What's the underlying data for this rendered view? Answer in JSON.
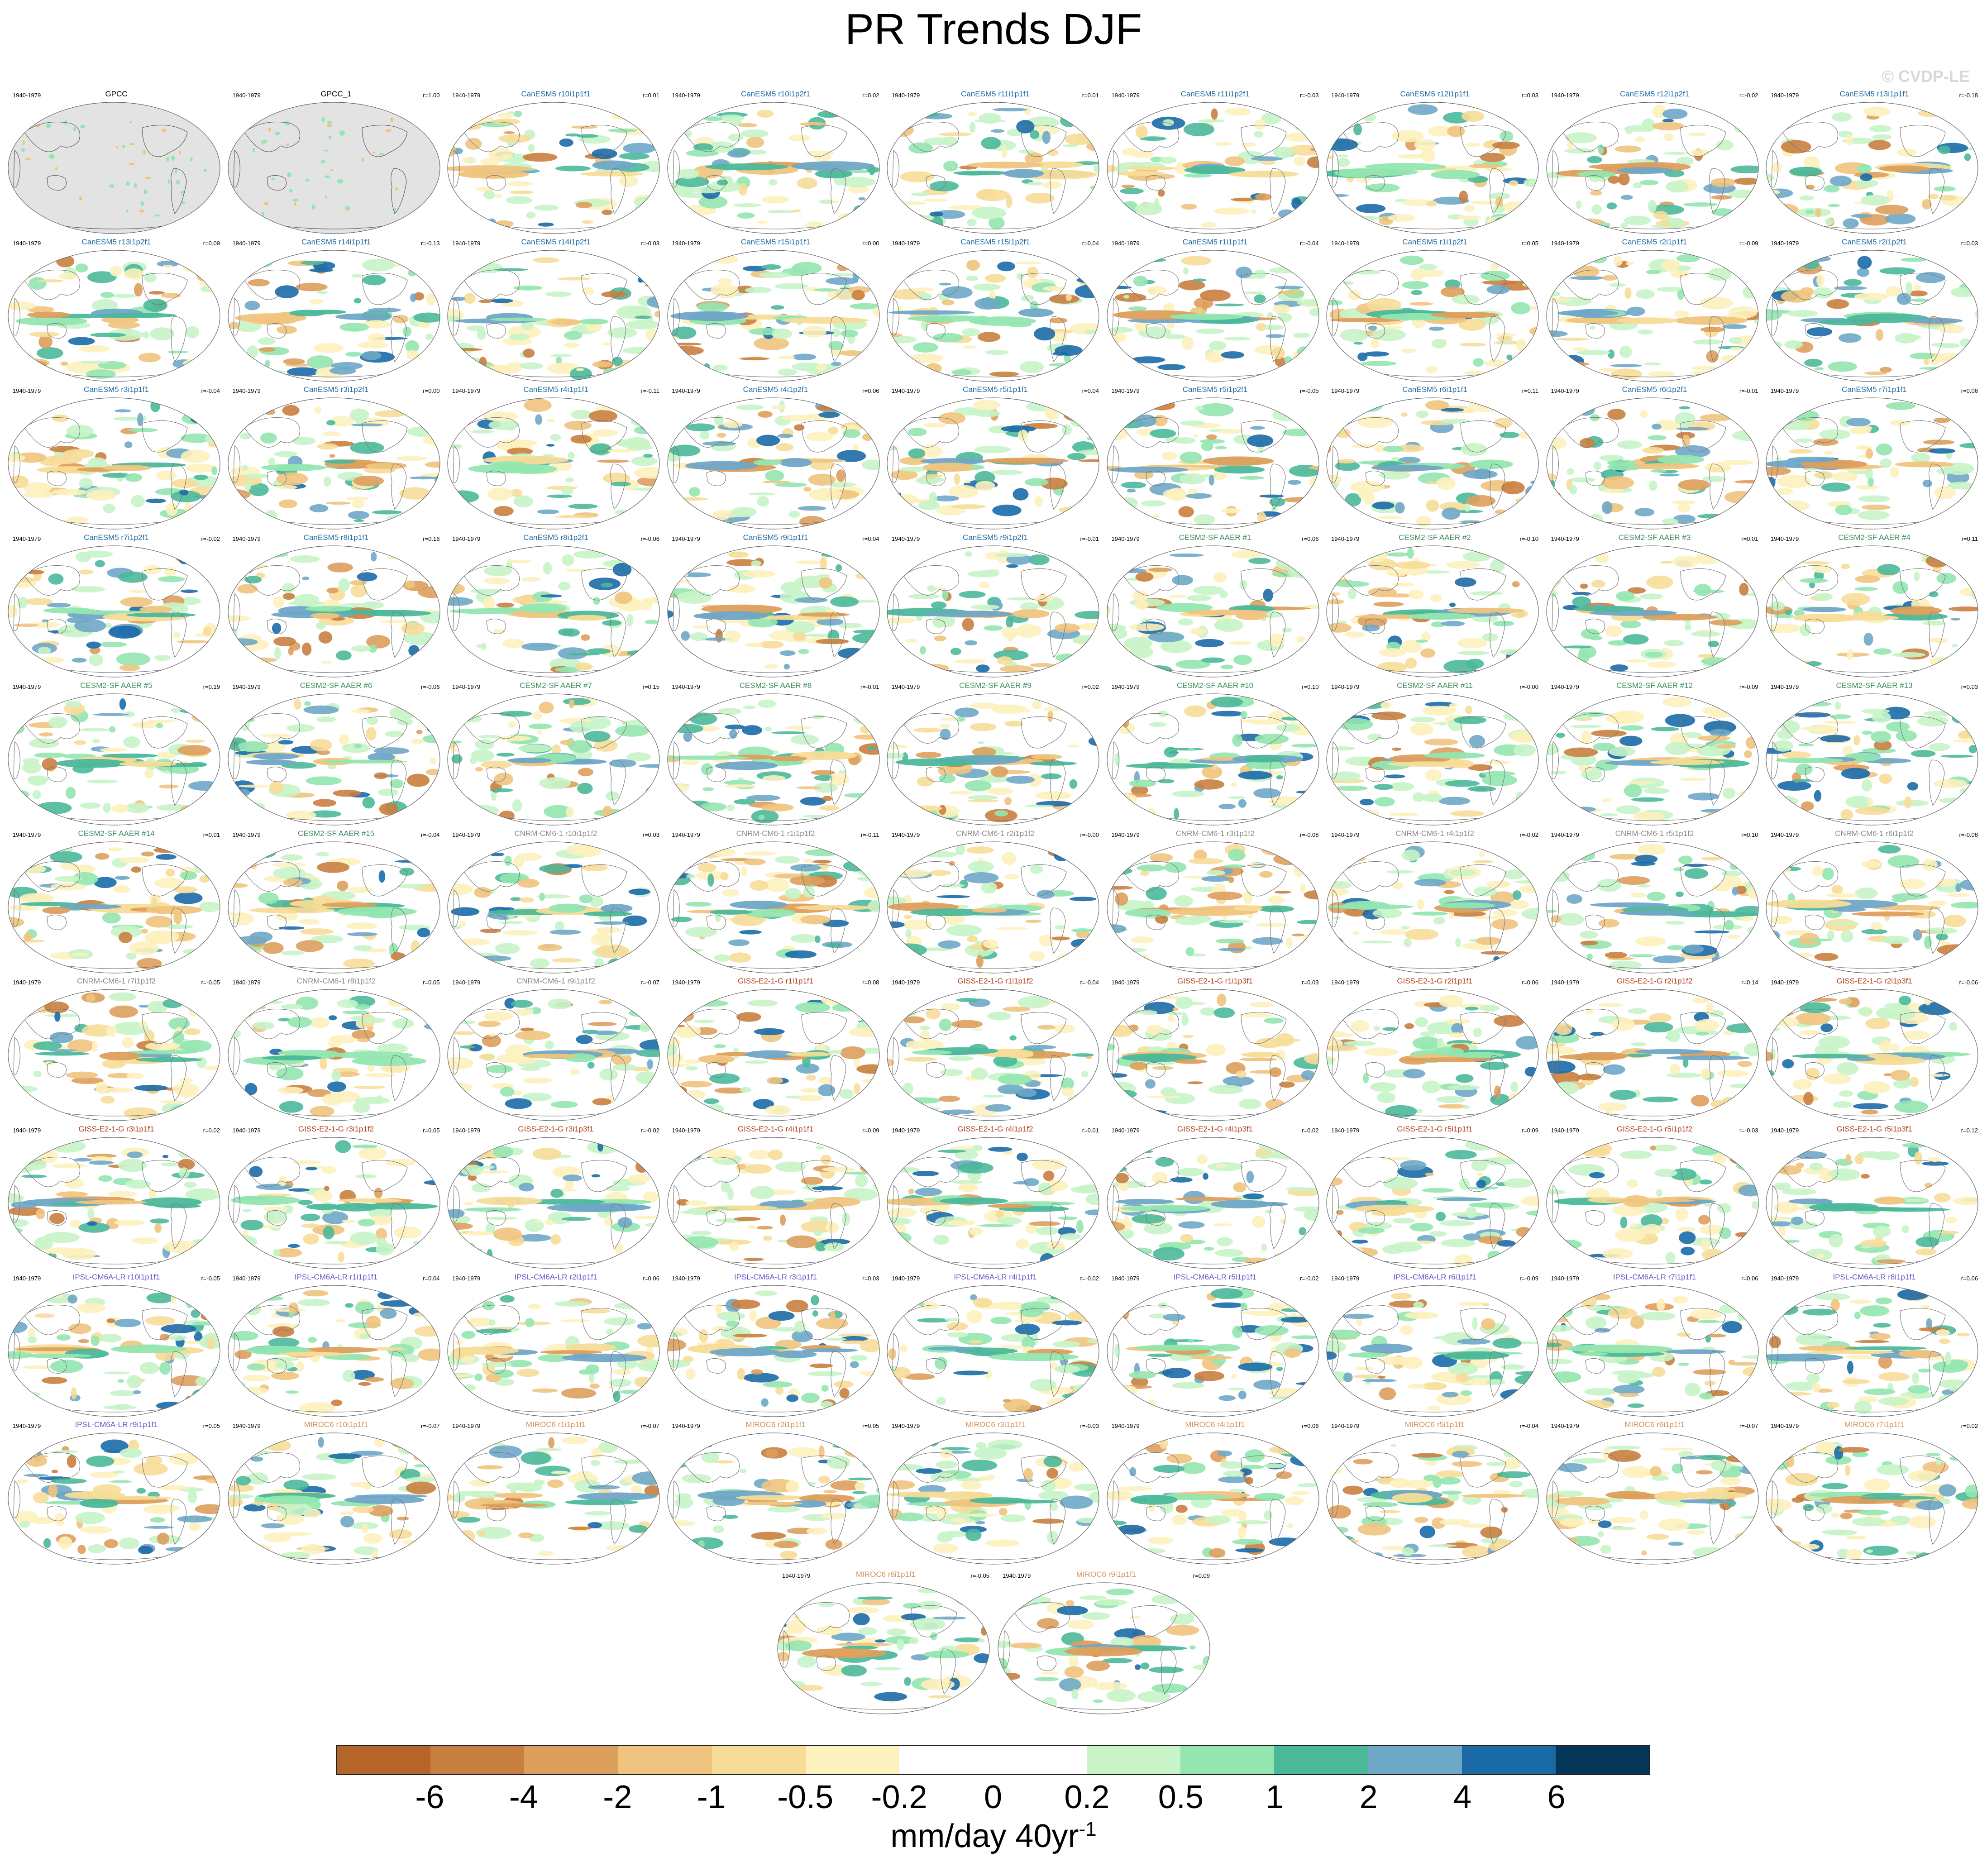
{
  "title": "PR Trends DJF",
  "watermark": "© CVDP-LE",
  "period": "1940-1979",
  "colors": {
    "canesm5": "#1f6aa0",
    "cesm2": "#3e8b5c",
    "cnrm": "#8a8a8a",
    "giss": "#b0411a",
    "ipsl": "#6b56c9",
    "miroc6": "#d59155",
    "obs": "#000000"
  },
  "panels": [
    {
      "name": "GPCC",
      "r": "",
      "group": "obs",
      "obs": true
    },
    {
      "name": "GPCC_1",
      "r": "r=1.00",
      "group": "obs",
      "obs": true
    },
    {
      "name": "CanESM5 r10i1p1f1",
      "r": "r=0.01",
      "group": "canesm5"
    },
    {
      "name": "CanESM5 r10i1p2f1",
      "r": "r=0.02",
      "group": "canesm5"
    },
    {
      "name": "CanESM5 r11i1p1f1",
      "r": "r=0.01",
      "group": "canesm5"
    },
    {
      "name": "CanESM5 r11i1p2f1",
      "r": "r=-0.03",
      "group": "canesm5"
    },
    {
      "name": "CanESM5 r12i1p1f1",
      "r": "r=0.03",
      "group": "canesm5"
    },
    {
      "name": "CanESM5 r12i1p2f1",
      "r": "r=-0.02",
      "group": "canesm5"
    },
    {
      "name": "CanESM5 r13i1p1f1",
      "r": "r=-0.18",
      "group": "canesm5"
    },
    {
      "name": "CanESM5 r13i1p2f1",
      "r": "r=0.09",
      "group": "canesm5"
    },
    {
      "name": "CanESM5 r14i1p1f1",
      "r": "r=-0.13",
      "group": "canesm5"
    },
    {
      "name": "CanESM5 r14i1p2f1",
      "r": "r=-0.03",
      "group": "canesm5"
    },
    {
      "name": "CanESM5 r15i1p1f1",
      "r": "r=0.00",
      "group": "canesm5"
    },
    {
      "name": "CanESM5 r15i1p2f1",
      "r": "r=0.04",
      "group": "canesm5"
    },
    {
      "name": "CanESM5 r1i1p1f1",
      "r": "r=-0.04",
      "group": "canesm5"
    },
    {
      "name": "CanESM5 r1i1p2f1",
      "r": "r=0.05",
      "group": "canesm5"
    },
    {
      "name": "CanESM5 r2i1p1f1",
      "r": "r=-0.09",
      "group": "canesm5"
    },
    {
      "name": "CanESM5 r2i1p2f1",
      "r": "r=0.03",
      "group": "canesm5"
    },
    {
      "name": "CanESM5 r3i1p1f1",
      "r": "r=-0.04",
      "group": "canesm5"
    },
    {
      "name": "CanESM5 r3i1p2f1",
      "r": "r=0.00",
      "group": "canesm5"
    },
    {
      "name": "CanESM5 r4i1p1f1",
      "r": "r=-0.11",
      "group": "canesm5"
    },
    {
      "name": "CanESM5 r4i1p2f1",
      "r": "r=0.06",
      "group": "canesm5"
    },
    {
      "name": "CanESM5 r5i1p1f1",
      "r": "r=0.04",
      "group": "canesm5"
    },
    {
      "name": "CanESM5 r5i1p2f1",
      "r": "r=-0.05",
      "group": "canesm5"
    },
    {
      "name": "CanESM5 r6i1p1f1",
      "r": "r=0.11",
      "group": "canesm5"
    },
    {
      "name": "CanESM5 r6i1p2f1",
      "r": "r=-0.01",
      "group": "canesm5"
    },
    {
      "name": "CanESM5 r7i1p1f1",
      "r": "r=0.06",
      "group": "canesm5"
    },
    {
      "name": "CanESM5 r7i1p2f1",
      "r": "r=-0.02",
      "group": "canesm5"
    },
    {
      "name": "CanESM5 r8i1p1f1",
      "r": "r=0.16",
      "group": "canesm5"
    },
    {
      "name": "CanESM5 r8i1p2f1",
      "r": "r=-0.06",
      "group": "canesm5"
    },
    {
      "name": "CanESM5 r9i1p1f1",
      "r": "r=0.04",
      "group": "canesm5"
    },
    {
      "name": "CanESM5 r9i1p2f1",
      "r": "r=-0.01",
      "group": "canesm5"
    },
    {
      "name": "CESM2-SF AAER #1",
      "r": "r=0.06",
      "group": "cesm2"
    },
    {
      "name": "CESM2-SF AAER #2",
      "r": "r=-0.10",
      "group": "cesm2"
    },
    {
      "name": "CESM2-SF AAER #3",
      "r": "r=0.01",
      "group": "cesm2"
    },
    {
      "name": "CESM2-SF AAER #4",
      "r": "r=0.11",
      "group": "cesm2"
    },
    {
      "name": "CESM2-SF AAER #5",
      "r": "r=0.19",
      "group": "cesm2"
    },
    {
      "name": "CESM2-SF AAER #6",
      "r": "r=-0.06",
      "group": "cesm2"
    },
    {
      "name": "CESM2-SF AAER #7",
      "r": "r=0.15",
      "group": "cesm2"
    },
    {
      "name": "CESM2-SF AAER #8",
      "r": "r=-0.01",
      "group": "cesm2"
    },
    {
      "name": "CESM2-SF AAER #9",
      "r": "r=0.02",
      "group": "cesm2"
    },
    {
      "name": "CESM2-SF AAER #10",
      "r": "r=0.10",
      "group": "cesm2"
    },
    {
      "name": "CESM2-SF AAER #11",
      "r": "r=-0.00",
      "group": "cesm2"
    },
    {
      "name": "CESM2-SF AAER #12",
      "r": "r=-0.09",
      "group": "cesm2"
    },
    {
      "name": "CESM2-SF AAER #13",
      "r": "r=0.03",
      "group": "cesm2"
    },
    {
      "name": "CESM2-SF AAER #14",
      "r": "r=0.01",
      "group": "cesm2"
    },
    {
      "name": "CESM2-SF AAER #15",
      "r": "r=-0.04",
      "group": "cesm2"
    },
    {
      "name": "CNRM-CM6-1 r10i1p1f2",
      "r": "r=0.03",
      "group": "cnrm"
    },
    {
      "name": "CNRM-CM6-1 r1i1p1f2",
      "r": "r=-0.11",
      "group": "cnrm"
    },
    {
      "name": "CNRM-CM6-1 r2i1p1f2",
      "r": "r=-0.00",
      "group": "cnrm"
    },
    {
      "name": "CNRM-CM6-1 r3i1p1f2",
      "r": "r=-0.08",
      "group": "cnrm"
    },
    {
      "name": "CNRM-CM6-1 r4i1p1f2",
      "r": "r=-0.02",
      "group": "cnrm"
    },
    {
      "name": "CNRM-CM6-1 r5i1p1f2",
      "r": "r=0.10",
      "group": "cnrm"
    },
    {
      "name": "CNRM-CM6-1 r6i1p1f2",
      "r": "r=-0.08",
      "group": "cnrm"
    },
    {
      "name": "CNRM-CM6-1 r7i1p1f2",
      "r": "r=-0.05",
      "group": "cnrm"
    },
    {
      "name": "CNRM-CM6-1 r8i1p1f2",
      "r": "r=0.05",
      "group": "cnrm"
    },
    {
      "name": "CNRM-CM6-1 r9i1p1f2",
      "r": "r=-0.07",
      "group": "cnrm"
    },
    {
      "name": "GISS-E2-1-G r1i1p1f1",
      "r": "r=0.08",
      "group": "giss"
    },
    {
      "name": "GISS-E2-1-G r1i1p1f2",
      "r": "r=-0.04",
      "group": "giss"
    },
    {
      "name": "GISS-E2-1-G r1i1p3f1",
      "r": "r=0.03",
      "group": "giss"
    },
    {
      "name": "GISS-E2-1-G r2i1p1f1",
      "r": "r=0.06",
      "group": "giss"
    },
    {
      "name": "GISS-E2-1-G r2i1p1f2",
      "r": "r=0.14",
      "group": "giss"
    },
    {
      "name": "GISS-E2-1-G r2i1p3f1",
      "r": "r=-0.06",
      "group": "giss"
    },
    {
      "name": "GISS-E2-1-G r3i1p1f1",
      "r": "r=0.02",
      "group": "giss"
    },
    {
      "name": "GISS-E2-1-G r3i1p1f2",
      "r": "r=0.05",
      "group": "giss"
    },
    {
      "name": "GISS-E2-1-G r3i1p3f1",
      "r": "r=-0.02",
      "group": "giss"
    },
    {
      "name": "GISS-E2-1-G r4i1p1f1",
      "r": "r=0.09",
      "group": "giss"
    },
    {
      "name": "GISS-E2-1-G r4i1p1f2",
      "r": "r=0.01",
      "group": "giss"
    },
    {
      "name": "GISS-E2-1-G r4i1p3f1",
      "r": "r=0.02",
      "group": "giss"
    },
    {
      "name": "GISS-E2-1-G r5i1p1f1",
      "r": "r=0.09",
      "group": "giss"
    },
    {
      "name": "GISS-E2-1-G r5i1p1f2",
      "r": "r=-0.03",
      "group": "giss"
    },
    {
      "name": "GISS-E2-1-G r5i1p3f1",
      "r": "r=0.12",
      "group": "giss"
    },
    {
      "name": "IPSL-CM6A-LR r10i1p1f1",
      "r": "r=-0.05",
      "group": "ipsl"
    },
    {
      "name": "IPSL-CM6A-LR r1i1p1f1",
      "r": "r=0.04",
      "group": "ipsl"
    },
    {
      "name": "IPSL-CM6A-LR r2i1p1f1",
      "r": "r=0.06",
      "group": "ipsl"
    },
    {
      "name": "IPSL-CM6A-LR r3i1p1f1",
      "r": "r=0.03",
      "group": "ipsl"
    },
    {
      "name": "IPSL-CM6A-LR r4i1p1f1",
      "r": "r=-0.02",
      "group": "ipsl"
    },
    {
      "name": "IPSL-CM6A-LR r5i1p1f1",
      "r": "r=-0.02",
      "group": "ipsl"
    },
    {
      "name": "IPSL-CM6A-LR r6i1p1f1",
      "r": "r=-0.09",
      "group": "ipsl"
    },
    {
      "name": "IPSL-CM6A-LR r7i1p1f1",
      "r": "r=0.06",
      "group": "ipsl"
    },
    {
      "name": "IPSL-CM6A-LR r8i1p1f1",
      "r": "r=0.06",
      "group": "ipsl"
    },
    {
      "name": "IPSL-CM6A-LR r9i1p1f1",
      "r": "r=0.05",
      "group": "ipsl"
    },
    {
      "name": "MIROC6 r10i1p1f1",
      "r": "r=-0.07",
      "group": "miroc6"
    },
    {
      "name": "MIROC6 r1i1p1f1",
      "r": "r=-0.07",
      "group": "miroc6"
    },
    {
      "name": "MIROC6 r2i1p1f1",
      "r": "r=0.05",
      "group": "miroc6"
    },
    {
      "name": "MIROC6 r3i1p1f1",
      "r": "r=-0.03",
      "group": "miroc6"
    },
    {
      "name": "MIROC6 r4i1p1f1",
      "r": "r=0.06",
      "group": "miroc6"
    },
    {
      "name": "MIROC6 r5i1p1f1",
      "r": "r=-0.04",
      "group": "miroc6"
    },
    {
      "name": "MIROC6 r6i1p1f1",
      "r": "r=-0.07",
      "group": "miroc6"
    },
    {
      "name": "MIROC6 r7i1p1f1",
      "r": "r=0.02",
      "group": "miroc6"
    },
    {
      "name": "MIROC6 r8i1p1f1",
      "r": "r=-0.05",
      "group": "miroc6"
    },
    {
      "name": "MIROC6 r9i1p1f1",
      "r": "r=0.09",
      "group": "miroc6"
    }
  ],
  "chart_data": {
    "type": "heatmap",
    "title": "PR Trends DJF",
    "colorbar": {
      "labels": [
        "-6",
        "-4",
        "-2",
        "-1",
        "-0.5",
        "-0.2",
        "0",
        "0.2",
        "0.5",
        "1",
        "2",
        "4",
        "6"
      ],
      "colors": [
        "#b5652a",
        "#c97f3f",
        "#dd9f5c",
        "#f0c47e",
        "#f7dc98",
        "#fdf1be",
        "#ffffff",
        "#ffffff",
        "#c8f4c8",
        "#93e6b0",
        "#4bb89a",
        "#6fa7c7",
        "#1b6aa8",
        "#06355a"
      ],
      "units": "mm/day 40yr",
      "units_sup": "-1"
    }
  }
}
